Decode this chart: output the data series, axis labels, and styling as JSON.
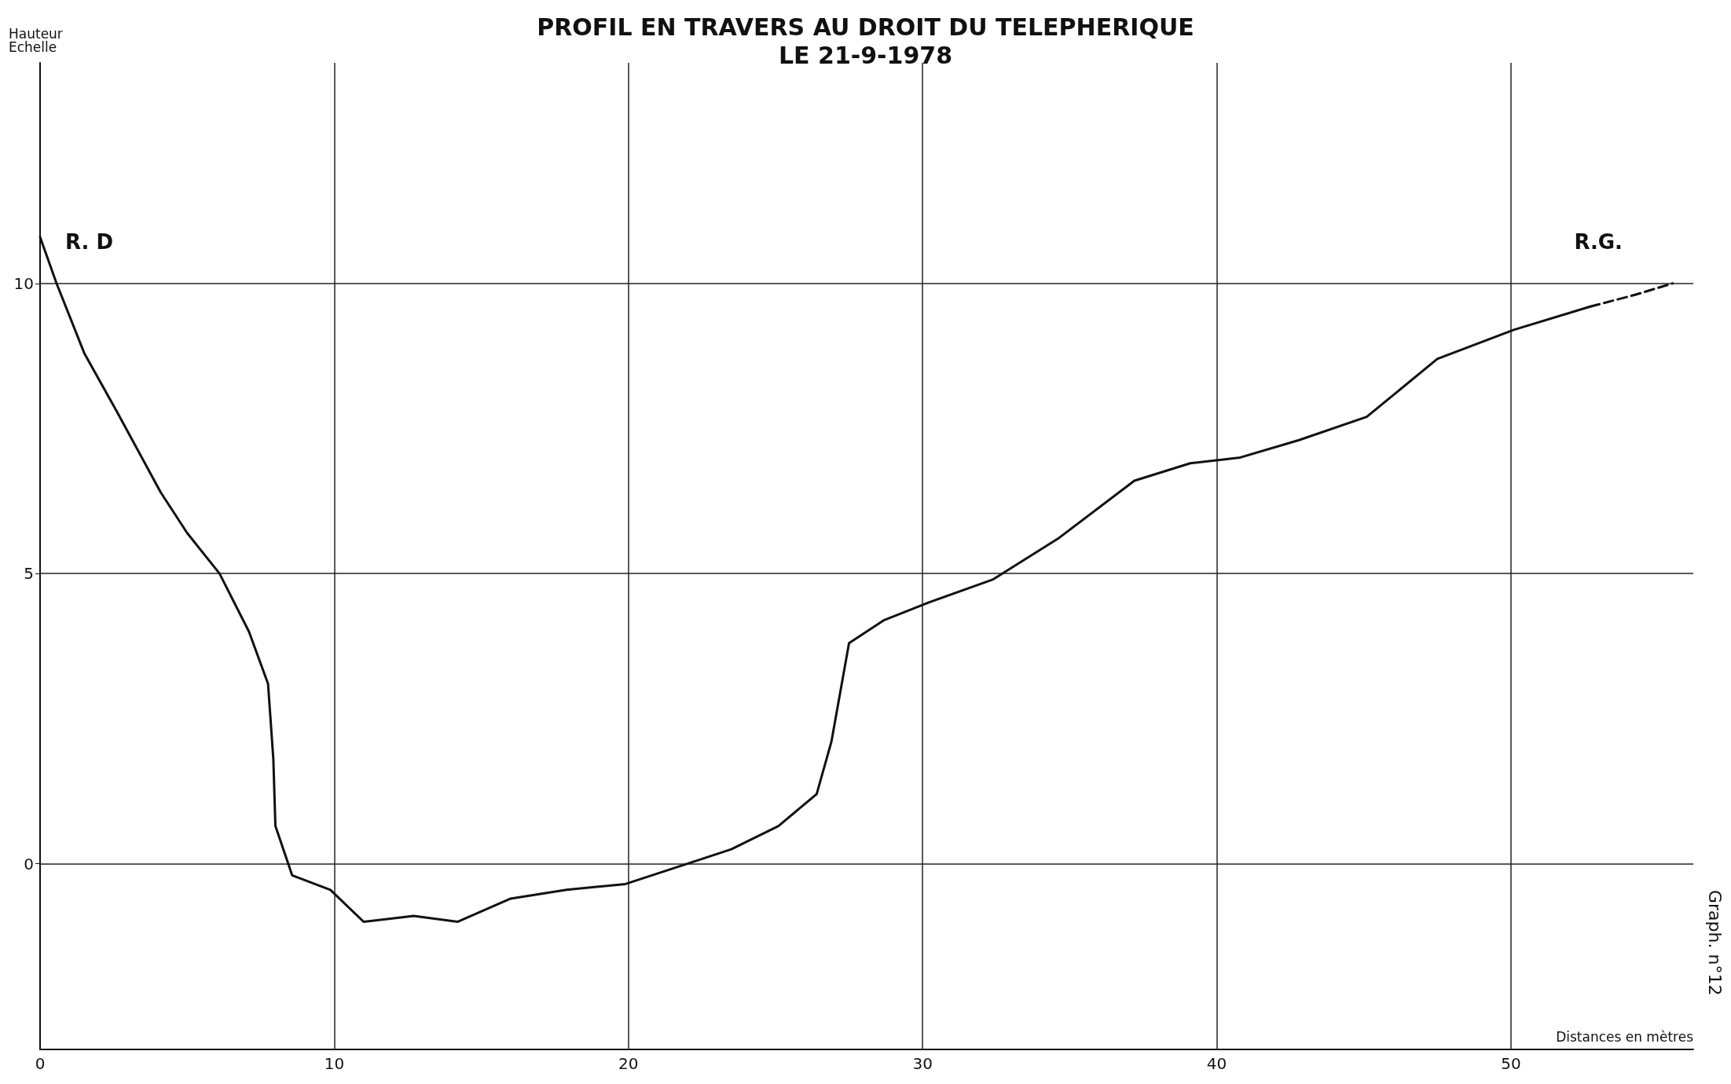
{
  "chart_data": {
    "type": "line",
    "title": "PROFIL EN TRAVERS AU DROIT DU TELEPHERIQUE",
    "subtitle": "LE 21-9-1978",
    "xlabel": "Distances en mètres",
    "ylabel": "Hauteur\nEchelle",
    "xlim": [
      0,
      56.2
    ],
    "ylim": [
      -3.2,
      13.8
    ],
    "xticks": [
      0,
      10,
      20,
      30,
      40,
      50
    ],
    "yticks": [
      0,
      5,
      10
    ],
    "grid": true,
    "marker": "none",
    "series": [
      {
        "color": "#111111",
        "line_style": "solid",
        "x": [
          0,
          0.56,
          1.5,
          2.6,
          4.1,
          5.0,
          6.1,
          7.1,
          7.75,
          7.93,
          8.0,
          8.57,
          9.87,
          11.0,
          12.7,
          14.2,
          16.0,
          17.9,
          19.9,
          22.0,
          23.5,
          25.1,
          26.4,
          26.9,
          27.5,
          28.7,
          30.2,
          32.4,
          34.6,
          37.2,
          39.1,
          40.8,
          42.8,
          45.1,
          47.5,
          50.1,
          52.7
        ],
        "values": [
          10.8,
          10,
          8.8,
          7.8,
          6.4,
          5.7,
          5.0,
          4.0,
          3.1,
          1.8,
          0.65,
          -0.2,
          -0.45,
          -1.0,
          -0.9,
          -1.0,
          -0.6,
          -0.45,
          -0.35,
          0,
          0.25,
          0.65,
          1.2,
          2.1,
          3.8,
          4.2,
          4.5,
          4.9,
          5.6,
          6.6,
          6.9,
          7.0,
          7.3,
          7.7,
          8.7,
          9.2,
          9.6
        ]
      },
      {
        "color": "#111111",
        "line_style": "dashed",
        "x": [
          52.7,
          54.2,
          55.5
        ],
        "values": [
          9.6,
          9.8,
          10
        ]
      }
    ],
    "annotations": [
      "R. D",
      "R.G.",
      "Graph. n°12"
    ]
  }
}
